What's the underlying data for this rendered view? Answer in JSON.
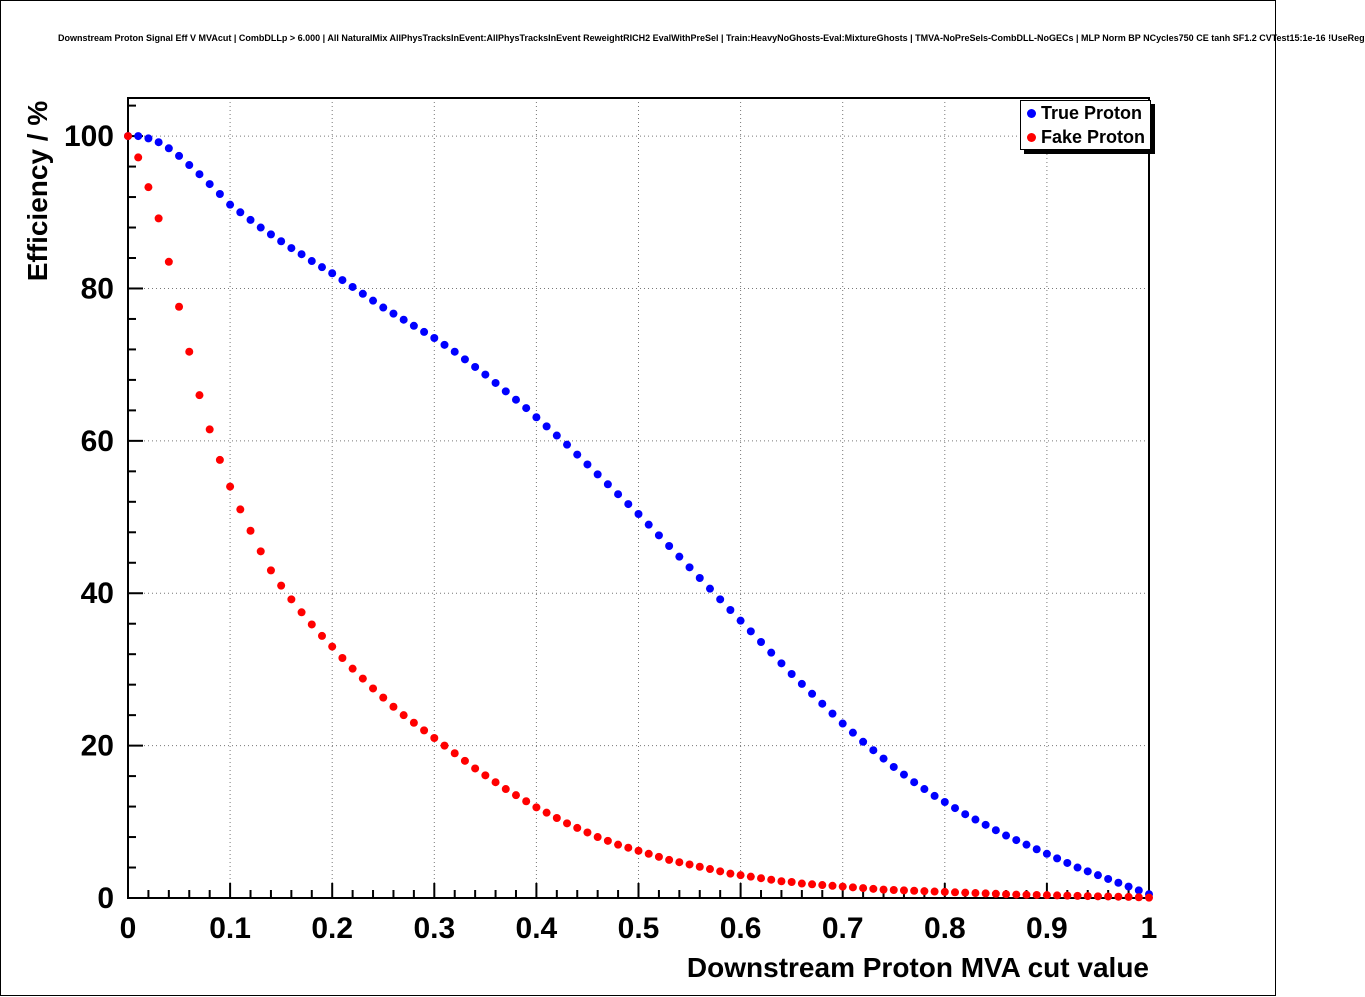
{
  "title": "Downstream Proton Signal Eff V MVAcut | CombDLLp > 6.000 | All NaturalMix AllPhysTracksInEvent:AllPhysTracksInEvent ReweightRICH2 EvalWithPreSel | Train:HeavyNoGhosts-Eval:MixtureGhosts | TMVA-NoPreSels-CombDLL-NoGECs | MLP Norm BP NCycles750 CE tanh SF1.2 CVTest15:1e-16 !UseReg",
  "chart_data": {
    "type": "scatter",
    "title": "Downstream Proton Signal Eff V MVAcut | CombDLLp > 6.000 | All NaturalMix AllPhysTracksInEvent:AllPhysTracksInEvent ReweightRICH2 EvalWithPreSel | Train:HeavyNoGhosts-Eval:MixtureGhosts | TMVA-NoPreSels-CombDLL-NoGECs | MLP Norm BP NCycles750 CE tanh SF1.2 CVTest15:1e-16 !UseReg",
    "xlabel": "Downstream Proton MVA cut value",
    "ylabel": "Efficiency / %",
    "xlim": [
      0,
      1
    ],
    "ylim": [
      0,
      105
    ],
    "grid": true,
    "x_major": 0.1,
    "x_minor": 0.02,
    "y_major": 20,
    "y_minor": 4,
    "x_ticks": [
      0,
      0.1,
      0.2,
      0.3,
      0.4,
      0.5,
      0.6,
      0.7,
      0.8,
      0.9,
      1
    ],
    "x_tick_labels": [
      "0",
      "0.1",
      "0.2",
      "0.3",
      "0.4",
      "0.5",
      "0.6",
      "0.7",
      "0.8",
      "0.9",
      "1"
    ],
    "y_ticks": [
      0,
      20,
      40,
      60,
      80,
      100
    ],
    "y_tick_labels": [
      "0",
      "20",
      "40",
      "60",
      "80",
      "100"
    ],
    "legend": {
      "position": "top-right",
      "entries": [
        {
          "label": "True Proton",
          "color": "#0000ff"
        },
        {
          "label": "Fake Proton",
          "color": "#ff0000"
        }
      ]
    },
    "x": [
      0,
      0.01,
      0.02,
      0.03,
      0.04,
      0.05,
      0.06,
      0.07,
      0.08,
      0.09,
      0.1,
      0.11,
      0.12,
      0.13,
      0.14,
      0.15,
      0.16,
      0.17,
      0.18,
      0.19,
      0.2,
      0.21,
      0.22,
      0.23,
      0.24,
      0.25,
      0.26,
      0.27,
      0.28,
      0.29,
      0.3,
      0.31,
      0.32,
      0.33,
      0.34,
      0.35,
      0.36,
      0.37,
      0.38,
      0.39,
      0.4,
      0.41,
      0.42,
      0.43,
      0.44,
      0.45,
      0.46,
      0.47,
      0.48,
      0.49,
      0.5,
      0.51,
      0.52,
      0.53,
      0.54,
      0.55,
      0.56,
      0.57,
      0.58,
      0.59,
      0.6,
      0.61,
      0.62,
      0.63,
      0.64,
      0.65,
      0.66,
      0.67,
      0.68,
      0.69,
      0.7,
      0.71,
      0.72,
      0.73,
      0.74,
      0.75,
      0.76,
      0.77,
      0.78,
      0.79,
      0.8,
      0.81,
      0.82,
      0.83,
      0.84,
      0.85,
      0.86,
      0.87,
      0.88,
      0.89,
      0.9,
      0.91,
      0.92,
      0.93,
      0.94,
      0.95,
      0.96,
      0.97,
      0.98,
      0.99,
      1
    ],
    "series": [
      {
        "name": "True Proton",
        "color": "#0000ff",
        "marker": "full-circle",
        "values": [
          100,
          100,
          99.7,
          99.2,
          98.4,
          97.4,
          96.2,
          95,
          93.7,
          92.4,
          91,
          90,
          89,
          88,
          87.1,
          86.2,
          85.3,
          84.5,
          83.6,
          82.8,
          82,
          81.1,
          80.2,
          79.3,
          78.4,
          77.5,
          76.7,
          75.9,
          75.1,
          74.3,
          73.5,
          72.6,
          71.7,
          70.7,
          69.7,
          68.7,
          67.6,
          66.5,
          65.4,
          64.3,
          63.1,
          61.9,
          60.7,
          59.5,
          58.2,
          56.9,
          55.6,
          54.3,
          53,
          51.7,
          50.4,
          49,
          47.6,
          46.2,
          44.8,
          43.4,
          42,
          40.6,
          39.2,
          37.8,
          36.4,
          35,
          33.6,
          32.2,
          30.8,
          29.4,
          28.1,
          26.8,
          25.5,
          24.2,
          22.9,
          21.7,
          20.5,
          19.4,
          18.3,
          17.2,
          16.2,
          15.2,
          14.3,
          13.4,
          12.6,
          11.8,
          11,
          10.3,
          9.6,
          8.9,
          8.2,
          7.6,
          7,
          6.4,
          5.8,
          5.2,
          4.6,
          4,
          3.5,
          3,
          2.5,
          2,
          1.5,
          1,
          0.5
        ]
      },
      {
        "name": "Fake Proton",
        "color": "#ff0000",
        "marker": "full-circle",
        "values": [
          100,
          97.2,
          93.3,
          89.2,
          83.5,
          77.6,
          71.7,
          66,
          61.5,
          57.5,
          54,
          51,
          48.2,
          45.5,
          43,
          41,
          39.2,
          37.5,
          35.9,
          34.4,
          33,
          31.5,
          30.1,
          28.8,
          27.5,
          26.3,
          25.1,
          24,
          23,
          22,
          21,
          20,
          19,
          18,
          17,
          16.1,
          15.2,
          14.3,
          13.5,
          12.7,
          11.9,
          11.2,
          10.5,
          9.8,
          9.2,
          8.6,
          8,
          7.5,
          7,
          6.6,
          6.2,
          5.8,
          5.4,
          5,
          4.7,
          4.4,
          4.1,
          3.8,
          3.5,
          3.2,
          3,
          2.8,
          2.6,
          2.4,
          2.2,
          2.1,
          1.9,
          1.8,
          1.7,
          1.6,
          1.5,
          1.4,
          1.3,
          1.2,
          1.1,
          1.05,
          1,
          0.95,
          0.9,
          0.85,
          0.8,
          0.75,
          0.7,
          0.65,
          0.6,
          0.55,
          0.5,
          0.45,
          0.42,
          0.4,
          0.37,
          0.34,
          0.31,
          0.28,
          0.25,
          0.22,
          0.2,
          0.17,
          0.14,
          0.1,
          0.05
        ]
      }
    ]
  }
}
